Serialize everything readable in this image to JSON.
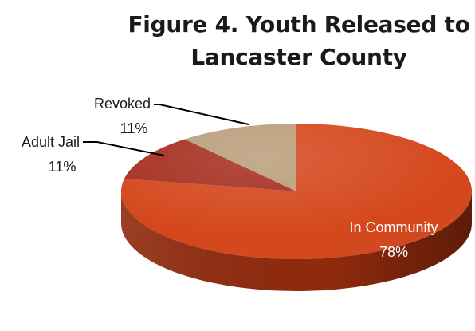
{
  "chart_data": {
    "type": "pie",
    "title_lines": [
      "Figure 4. Youth Released to",
      "Lancaster County"
    ],
    "slices": [
      {
        "label": "In Community",
        "value_label": "78%",
        "value": 78,
        "color": "#d4451a",
        "side_color": "#8f2a0d"
      },
      {
        "label": "Adult Jail",
        "value_label": "11%",
        "value": 11,
        "color": "#a42c1d",
        "side_color": "#6a1a10"
      },
      {
        "label": "Revoked",
        "value_label": "11%",
        "value": 11,
        "color": "#b89c78",
        "side_color": "#80684d"
      }
    ],
    "grid": false,
    "legend": "none"
  }
}
